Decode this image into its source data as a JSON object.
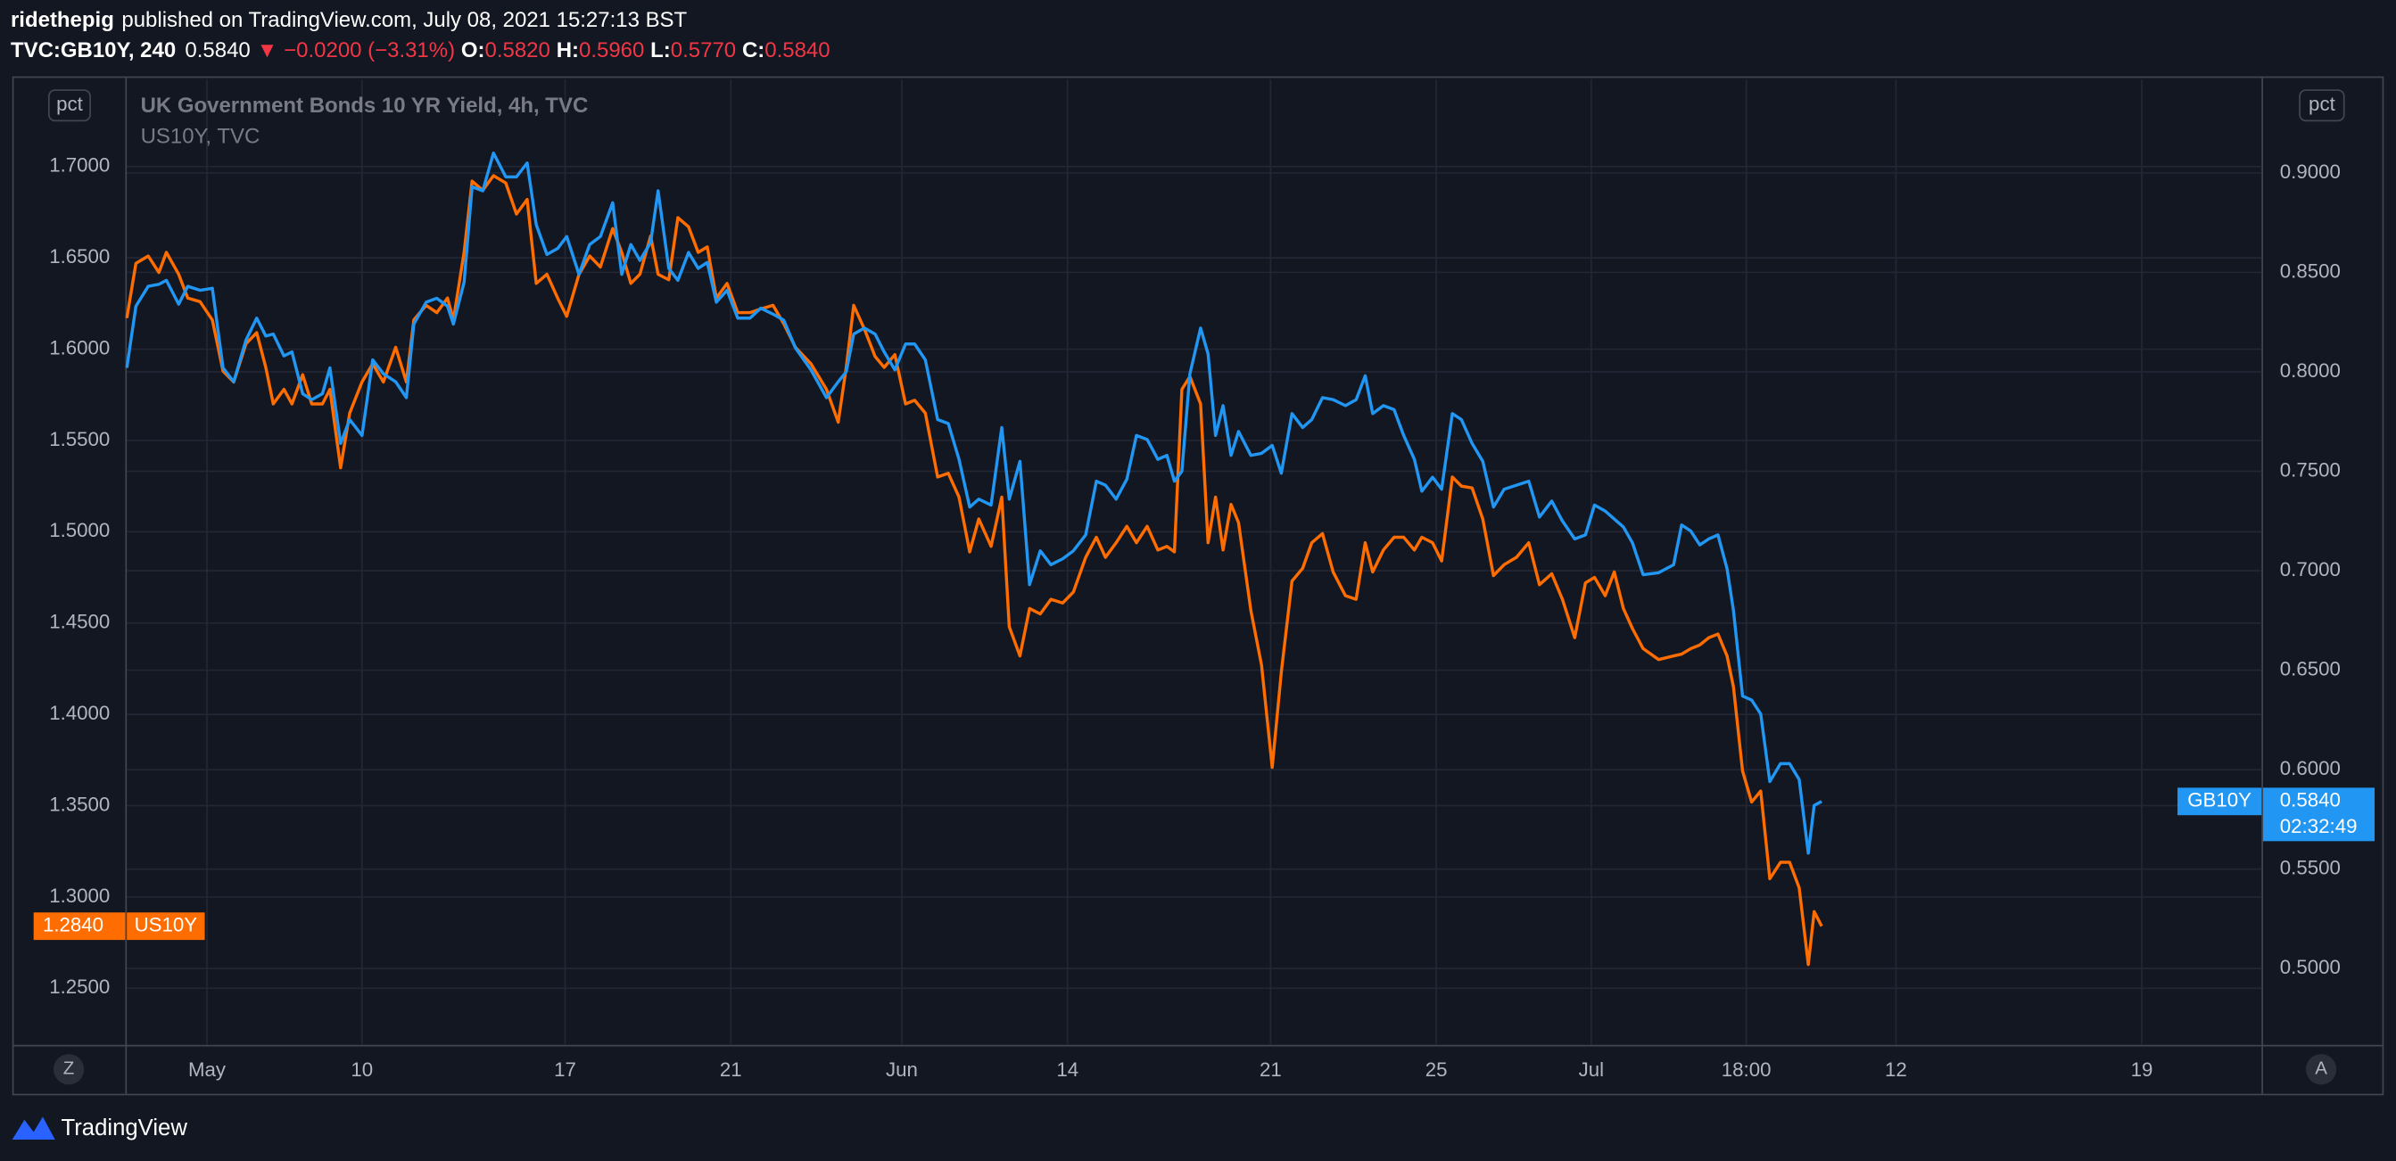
{
  "header": {
    "author": "ridethepig",
    "published": "published on TradingView.com, July 08, 2021 15:27:13 BST"
  },
  "ticker": {
    "symbol": "TVC:GB10Y, 240",
    "last": "0.5840",
    "arrow": "▼",
    "change": "−0.0200 (−3.31%)",
    "o_label": "O:",
    "o": "0.5820",
    "h_label": "H:",
    "h": "0.5960",
    "l_label": "L:",
    "l": "0.5770",
    "c_label": "C:",
    "c": "0.5840"
  },
  "footer": {
    "brand": "TradingView"
  },
  "buttons": {
    "left": "Z",
    "right": "A"
  },
  "chart_data": {
    "type": "line",
    "legend": [
      "UK Government Bonds 10 YR Yield, 4h, TVC",
      "US10Y, TVC"
    ],
    "y_label": "pct",
    "y2_label": "pct",
    "xlim": [
      0,
      399.4
    ],
    "xticks": [
      {
        "value": 15,
        "label": "May"
      },
      {
        "value": 44,
        "label": "10"
      },
      {
        "value": 82,
        "label": "17"
      },
      {
        "value": 113,
        "label": "21"
      },
      {
        "value": 145,
        "label": "Jun"
      },
      {
        "value": 176,
        "label": "14"
      },
      {
        "value": 214,
        "label": "21"
      },
      {
        "value": 245,
        "label": "25"
      },
      {
        "value": 274,
        "label": "Jul"
      },
      {
        "value": 303,
        "label": "18:00"
      },
      {
        "value": 331,
        "label": "12"
      },
      {
        "value": 377,
        "label": "19"
      }
    ],
    "ylim": [
      1.219,
      1.7477
    ],
    "yticks": [
      {
        "value": 1.25,
        "label": "1.2500"
      },
      {
        "value": 1.3,
        "label": "1.3000"
      },
      {
        "value": 1.35,
        "label": "1.3500"
      },
      {
        "value": 1.4,
        "label": "1.4000"
      },
      {
        "value": 1.45,
        "label": "1.4500"
      },
      {
        "value": 1.5,
        "label": "1.5000"
      },
      {
        "value": 1.55,
        "label": "1.5500"
      },
      {
        "value": 1.6,
        "label": "1.6000"
      },
      {
        "value": 1.65,
        "label": "1.6500"
      },
      {
        "value": 1.7,
        "label": "1.7000"
      }
    ],
    "y2lim": [
      0.4616,
      0.947
    ],
    "y2ticks": [
      {
        "value": 0.5,
        "label": "0.5000"
      },
      {
        "value": 0.55,
        "label": "0.5500"
      },
      {
        "value": 0.6,
        "label": "0.6000"
      },
      {
        "value": 0.65,
        "label": "0.6500"
      },
      {
        "value": 0.7,
        "label": "0.7000"
      },
      {
        "value": 0.75,
        "label": "0.7500"
      },
      {
        "value": 0.8,
        "label": "0.8000"
      },
      {
        "value": 0.85,
        "label": "0.8500"
      },
      {
        "value": 0.9,
        "label": "0.9000"
      }
    ],
    "grid": true,
    "x": [
      0,
      1.7,
      4,
      6,
      7.4,
      9.7,
      11.4,
      13.7,
      16,
      18,
      20,
      22.3,
      24.3,
      26,
      27.4,
      29.4,
      30.9,
      32.9,
      34.6,
      36.6,
      38,
      40,
      41.7,
      44,
      46,
      48,
      50.3,
      52.3,
      53.7,
      56,
      58,
      60,
      61.1,
      63.1,
      64.6,
      66.6,
      68.6,
      70.9,
      72.9,
      74.9,
      76.6,
      78.6,
      80.6,
      82.3,
      84.6,
      86.6,
      88.6,
      90.9,
      92.6,
      94.3,
      96,
      98,
      99.4,
      101.4,
      103.1,
      105.1,
      106.9,
      108.6,
      110.3,
      112.3,
      114.3,
      116.6,
      118.6,
      120.9,
      122.9,
      125.1,
      128,
      130.9,
      133.1,
      134.6,
      136,
      138,
      140,
      141.7,
      143.7,
      145.7,
      147.4,
      149.4,
      151.7,
      153.7,
      155.7,
      157.7,
      159.4,
      161.7,
      163.7,
      165.1,
      167.1,
      168.9,
      170.9,
      172.9,
      175.1,
      177.1,
      179.4,
      181.4,
      183.1,
      185.1,
      187.1,
      188.9,
      190.9,
      192.9,
      194.6,
      196,
      197.4,
      198.9,
      200.9,
      202.3,
      203.7,
      205.1,
      206.6,
      208,
      210.3,
      212.3,
      214.3,
      216,
      218,
      220,
      221.7,
      223.7,
      225.7,
      228,
      230,
      231.7,
      233.1,
      235.1,
      237.1,
      238.9,
      240.9,
      242.3,
      244.3,
      246,
      248,
      249.7,
      251.7,
      253.7,
      255.7,
      257.7,
      260,
      262.3,
      264.3,
      266.6,
      268.6,
      270.9,
      272.9,
      274.6,
      276.6,
      278.3,
      280,
      281.7,
      283.7,
      286.6,
      289.4,
      290.9,
      292.6,
      294.3,
      296,
      297.7,
      299.4,
      300.6,
      302.3,
      304,
      305.7,
      307.4,
      309.4,
      311.1,
      312.9,
      314.6,
      315.7,
      317.1
    ],
    "series": [
      {
        "name": "US10Y",
        "color": "#ff6d00",
        "axis": "y",
        "price_label": "1.2840",
        "values": [
          1.617,
          1.647,
          1.651,
          1.642,
          1.653,
          1.641,
          1.628,
          1.626,
          1.616,
          1.588,
          1.582,
          1.603,
          1.609,
          1.59,
          1.57,
          1.578,
          1.57,
          1.586,
          1.57,
          1.57,
          1.578,
          1.535,
          1.565,
          1.582,
          1.592,
          1.582,
          1.601,
          1.582,
          1.616,
          1.624,
          1.62,
          1.628,
          1.616,
          1.653,
          1.692,
          1.687,
          1.695,
          1.691,
          1.674,
          1.682,
          1.636,
          1.641,
          1.628,
          1.618,
          1.641,
          1.651,
          1.645,
          1.666,
          1.653,
          1.636,
          1.641,
          1.662,
          1.641,
          1.638,
          1.672,
          1.667,
          1.653,
          1.656,
          1.628,
          1.636,
          1.62,
          1.62,
          1.622,
          1.624,
          1.614,
          1.601,
          1.592,
          1.578,
          1.56,
          1.59,
          1.624,
          1.611,
          1.596,
          1.59,
          1.597,
          1.57,
          1.572,
          1.565,
          1.53,
          1.532,
          1.519,
          1.489,
          1.507,
          1.492,
          1.519,
          1.448,
          1.432,
          1.458,
          1.455,
          1.463,
          1.461,
          1.467,
          1.486,
          1.497,
          1.486,
          1.494,
          1.503,
          1.494,
          1.503,
          1.49,
          1.492,
          1.489,
          1.578,
          1.585,
          1.57,
          1.494,
          1.519,
          1.49,
          1.515,
          1.505,
          1.457,
          1.427,
          1.371,
          1.423,
          1.473,
          1.48,
          1.494,
          1.499,
          1.478,
          1.465,
          1.463,
          1.494,
          1.478,
          1.49,
          1.497,
          1.497,
          1.49,
          1.497,
          1.494,
          1.484,
          1.53,
          1.525,
          1.524,
          1.507,
          1.476,
          1.482,
          1.486,
          1.494,
          1.471,
          1.477,
          1.463,
          1.442,
          1.472,
          1.475,
          1.465,
          1.478,
          1.458,
          1.447,
          1.436,
          1.43,
          1.432,
          1.433,
          1.436,
          1.438,
          1.442,
          1.444,
          1.432,
          1.415,
          1.369,
          1.352,
          1.358,
          1.31,
          1.319,
          1.319,
          1.305,
          1.263,
          1.292,
          1.284
        ]
      },
      {
        "name": "GB10Y",
        "color": "#2196f3",
        "axis": "y2",
        "price_label": "0.5840",
        "countdown": "02:32:49",
        "values": [
          0.802,
          0.833,
          0.843,
          0.844,
          0.846,
          0.834,
          0.843,
          0.841,
          0.842,
          0.802,
          0.795,
          0.816,
          0.827,
          0.818,
          0.819,
          0.808,
          0.81,
          0.789,
          0.786,
          0.789,
          0.802,
          0.764,
          0.776,
          0.768,
          0.806,
          0.799,
          0.795,
          0.787,
          0.824,
          0.835,
          0.837,
          0.833,
          0.824,
          0.845,
          0.893,
          0.891,
          0.91,
          0.898,
          0.898,
          0.905,
          0.874,
          0.859,
          0.862,
          0.868,
          0.849,
          0.864,
          0.868,
          0.885,
          0.849,
          0.864,
          0.856,
          0.865,
          0.891,
          0.852,
          0.846,
          0.86,
          0.852,
          0.855,
          0.835,
          0.841,
          0.827,
          0.827,
          0.832,
          0.829,
          0.826,
          0.812,
          0.801,
          0.787,
          0.795,
          0.8,
          0.819,
          0.822,
          0.819,
          0.81,
          0.801,
          0.814,
          0.814,
          0.806,
          0.776,
          0.774,
          0.756,
          0.732,
          0.736,
          0.733,
          0.772,
          0.736,
          0.755,
          0.693,
          0.71,
          0.703,
          0.706,
          0.71,
          0.718,
          0.745,
          0.743,
          0.736,
          0.746,
          0.768,
          0.766,
          0.756,
          0.758,
          0.745,
          0.75,
          0.799,
          0.822,
          0.809,
          0.768,
          0.783,
          0.758,
          0.77,
          0.758,
          0.759,
          0.763,
          0.749,
          0.779,
          0.772,
          0.776,
          0.787,
          0.786,
          0.783,
          0.786,
          0.798,
          0.779,
          0.783,
          0.781,
          0.768,
          0.756,
          0.74,
          0.747,
          0.741,
          0.779,
          0.776,
          0.764,
          0.755,
          0.732,
          0.741,
          0.743,
          0.745,
          0.727,
          0.735,
          0.725,
          0.716,
          0.718,
          0.733,
          0.73,
          0.726,
          0.722,
          0.714,
          0.698,
          0.699,
          0.703,
          0.723,
          0.72,
          0.713,
          0.716,
          0.718,
          0.701,
          0.68,
          0.637,
          0.635,
          0.628,
          0.594,
          0.603,
          0.603,
          0.595,
          0.558,
          0.582,
          0.584
        ]
      }
    ]
  }
}
